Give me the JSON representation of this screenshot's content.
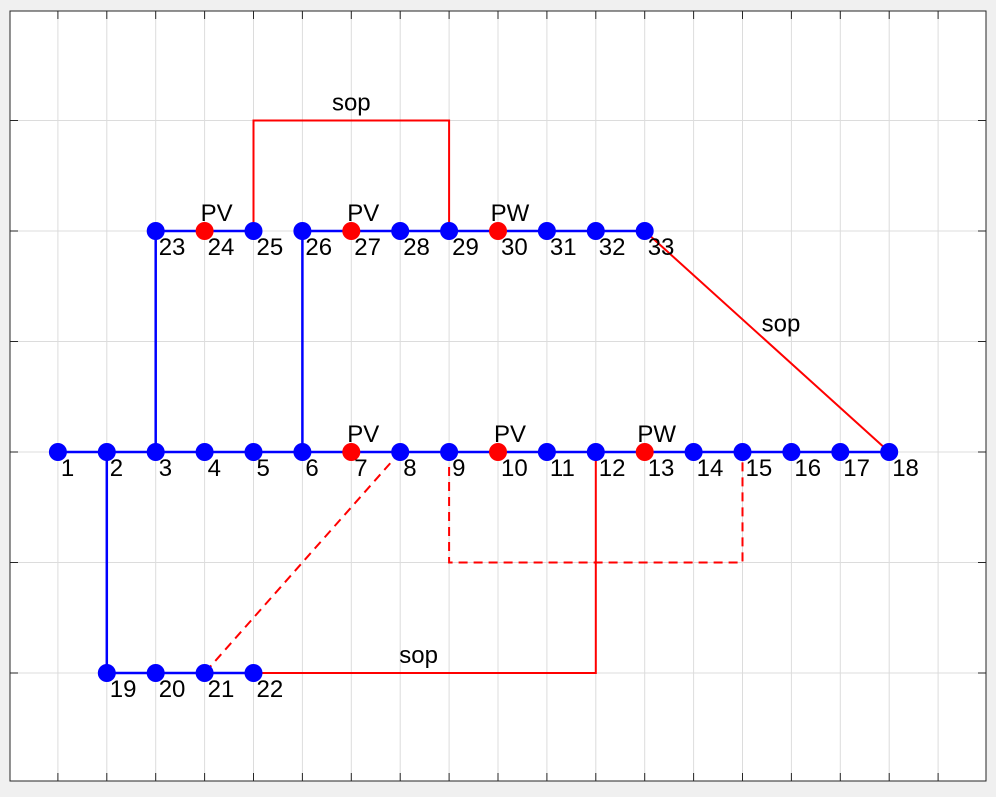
{
  "diagram": {
    "type": "network",
    "background": "#ffffff",
    "figure_background": "#f0f0f0",
    "colors": {
      "bus": "#0000ff",
      "sop": "#ff0000",
      "dg_node": "#ff0000",
      "grid": "#dcdcdc",
      "text": "#000000"
    },
    "nodes": [
      {
        "id": 1,
        "label": "1",
        "x": 1,
        "y": 0
      },
      {
        "id": 2,
        "label": "2",
        "x": 2,
        "y": 0
      },
      {
        "id": 3,
        "label": "3",
        "x": 3,
        "y": 0
      },
      {
        "id": 4,
        "label": "4",
        "x": 4,
        "y": 0
      },
      {
        "id": 5,
        "label": "5",
        "x": 5,
        "y": 0
      },
      {
        "id": 6,
        "label": "6",
        "x": 6,
        "y": 0
      },
      {
        "id": 7,
        "label": "7",
        "x": 7,
        "y": 0,
        "dg": "PV"
      },
      {
        "id": 8,
        "label": "8",
        "x": 8,
        "y": 0
      },
      {
        "id": 9,
        "label": "9",
        "x": 9,
        "y": 0
      },
      {
        "id": 10,
        "label": "10",
        "x": 10,
        "y": 0,
        "dg": "PV"
      },
      {
        "id": 11,
        "label": "11",
        "x": 11,
        "y": 0
      },
      {
        "id": 12,
        "label": "12",
        "x": 12,
        "y": 0
      },
      {
        "id": 13,
        "label": "13",
        "x": 13,
        "y": 0,
        "dg": "PW"
      },
      {
        "id": 14,
        "label": "14",
        "x": 14,
        "y": 0
      },
      {
        "id": 15,
        "label": "15",
        "x": 15,
        "y": 0
      },
      {
        "id": 16,
        "label": "16",
        "x": 16,
        "y": 0
      },
      {
        "id": 17,
        "label": "17",
        "x": 17,
        "y": 0
      },
      {
        "id": 18,
        "label": "18",
        "x": 18,
        "y": 0
      },
      {
        "id": 19,
        "label": "19",
        "x": 2,
        "y": -2
      },
      {
        "id": 20,
        "label": "20",
        "x": 3,
        "y": -2
      },
      {
        "id": 21,
        "label": "21",
        "x": 4,
        "y": -2
      },
      {
        "id": 22,
        "label": "22",
        "x": 5,
        "y": -2
      },
      {
        "id": 23,
        "label": "23",
        "x": 3,
        "y": 2
      },
      {
        "id": 24,
        "label": "24",
        "x": 4,
        "y": 2,
        "dg": "PV"
      },
      {
        "id": 25,
        "label": "25",
        "x": 5,
        "y": 2
      },
      {
        "id": 26,
        "label": "26",
        "x": 6,
        "y": 2
      },
      {
        "id": 27,
        "label": "27",
        "x": 7,
        "y": 2,
        "dg": "PV"
      },
      {
        "id": 28,
        "label": "28",
        "x": 8,
        "y": 2
      },
      {
        "id": 29,
        "label": "29",
        "x": 9,
        "y": 2
      },
      {
        "id": 30,
        "label": "30",
        "x": 10,
        "y": 2,
        "dg": "PW"
      },
      {
        "id": 31,
        "label": "31",
        "x": 11,
        "y": 2
      },
      {
        "id": 32,
        "label": "32",
        "x": 12,
        "y": 2
      },
      {
        "id": 33,
        "label": "33",
        "x": 13,
        "y": 2
      }
    ],
    "branches": [
      [
        1,
        2
      ],
      [
        2,
        3
      ],
      [
        3,
        4
      ],
      [
        4,
        5
      ],
      [
        5,
        6
      ],
      [
        6,
        7
      ],
      [
        7,
        8
      ],
      [
        8,
        9
      ],
      [
        9,
        10
      ],
      [
        10,
        11
      ],
      [
        11,
        12
      ],
      [
        12,
        13
      ],
      [
        13,
        14
      ],
      [
        14,
        15
      ],
      [
        15,
        16
      ],
      [
        16,
        17
      ],
      [
        17,
        18
      ],
      [
        2,
        19
      ],
      [
        19,
        20
      ],
      [
        20,
        21
      ],
      [
        21,
        22
      ],
      [
        3,
        23
      ],
      [
        23,
        24
      ],
      [
        24,
        25
      ],
      [
        6,
        26
      ],
      [
        26,
        27
      ],
      [
        27,
        28
      ],
      [
        28,
        29
      ],
      [
        29,
        30
      ],
      [
        30,
        31
      ],
      [
        31,
        32
      ],
      [
        32,
        33
      ]
    ],
    "sop_links": [
      {
        "label": "sop",
        "points": [
          [
            5,
            2
          ],
          [
            5,
            3
          ],
          [
            9,
            3
          ],
          [
            9,
            2
          ]
        ]
      },
      {
        "label": "sop",
        "points": [
          [
            13,
            2
          ],
          [
            18,
            0
          ]
        ]
      },
      {
        "label": "sop",
        "points": [
          [
            5,
            -2
          ],
          [
            12,
            -2
          ],
          [
            12,
            0
          ]
        ]
      }
    ],
    "tie_lines": [
      {
        "points": [
          [
            8,
            0
          ],
          [
            4,
            -2
          ]
        ]
      },
      {
        "points": [
          [
            9,
            0
          ],
          [
            9,
            -1
          ],
          [
            15,
            -1
          ],
          [
            15,
            0
          ]
        ]
      }
    ],
    "axes": {
      "xlim": [
        0,
        19
      ],
      "ylim": [
        -3,
        4
      ],
      "grid": true
    }
  }
}
